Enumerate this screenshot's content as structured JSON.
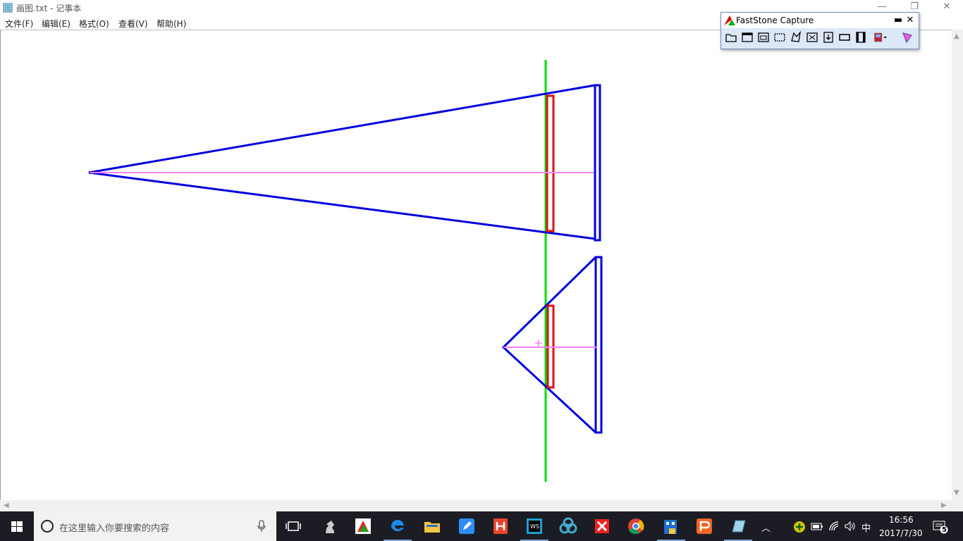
{
  "window": {
    "title": "画图.txt - 记事本",
    "icon": "notepad-icon"
  },
  "menu": {
    "items": [
      "文件(F)",
      "编辑(E)",
      "格式(O)",
      "查看(V)",
      "帮助(H)"
    ]
  },
  "capture_toolbar": {
    "title": "FastStone Capture",
    "minimize": "▬",
    "close": "✕",
    "tools": [
      "open-icon",
      "capture-window-icon",
      "capture-object-icon",
      "capture-rectangle-icon",
      "capture-freehand-icon",
      "capture-fullscreen-icon",
      "capture-scrolling-icon",
      "capture-fixed-region-icon",
      "screen-recorder-icon",
      "output-dropdown-icon",
      "settings-icon"
    ]
  },
  "taskbar": {
    "search_placeholder": "在这里输入你要搜索的内容",
    "ime": "中",
    "time": "16:56",
    "date": "2017/7/30",
    "notification_count": "5"
  },
  "colors": {
    "blue": "#0000dd",
    "red": "#dd1111",
    "green": "#00dd00",
    "pink": "#ff80ff"
  }
}
